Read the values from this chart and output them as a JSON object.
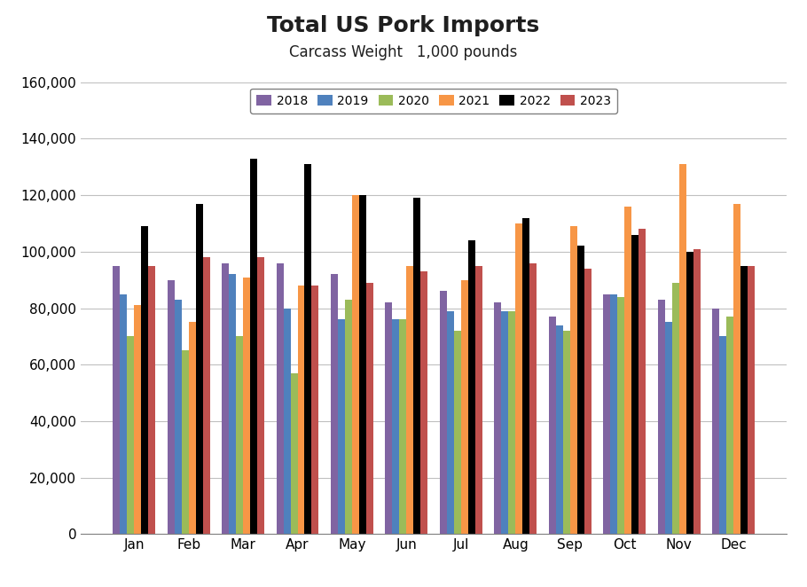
{
  "title": "Total US Pork Imports",
  "subtitle": "Carcass Weight   1,000 pounds",
  "months": [
    "Jan",
    "Feb",
    "Mar",
    "Apr",
    "May",
    "Jun",
    "Jul",
    "Aug",
    "Sep",
    "Oct",
    "Nov",
    "Dec"
  ],
  "series": {
    "2018": [
      95000,
      90000,
      96000,
      96000,
      92000,
      82000,
      86000,
      82000,
      77000,
      85000,
      83000,
      80000
    ],
    "2019": [
      85000,
      83000,
      92000,
      80000,
      76000,
      76000,
      79000,
      79000,
      74000,
      85000,
      75000,
      70000
    ],
    "2020": [
      70000,
      65000,
      70000,
      57000,
      83000,
      76000,
      72000,
      79000,
      72000,
      84000,
      89000,
      77000
    ],
    "2021": [
      81000,
      75000,
      91000,
      88000,
      120000,
      95000,
      90000,
      110000,
      109000,
      116000,
      131000,
      117000
    ],
    "2022": [
      109000,
      117000,
      133000,
      131000,
      120000,
      119000,
      104000,
      112000,
      102000,
      106000,
      100000,
      95000
    ],
    "2023": [
      95000,
      98000,
      98000,
      88000,
      89000,
      93000,
      95000,
      96000,
      94000,
      108000,
      101000,
      95000
    ]
  },
  "colors": {
    "2018": "#8064A2",
    "2019": "#4F81BD",
    "2020": "#9BBB59",
    "2021": "#F79646",
    "2022": "#000000",
    "2023": "#C0504D"
  },
  "ylim": [
    0,
    160000
  ],
  "ytick_step": 20000,
  "background_color": "#FFFFFF",
  "plot_bg_color": "#FFFFFF",
  "grid_color": "#C0C0C0",
  "title_fontsize": 18,
  "subtitle_fontsize": 12,
  "legend_fontsize": 10,
  "tick_fontsize": 11
}
